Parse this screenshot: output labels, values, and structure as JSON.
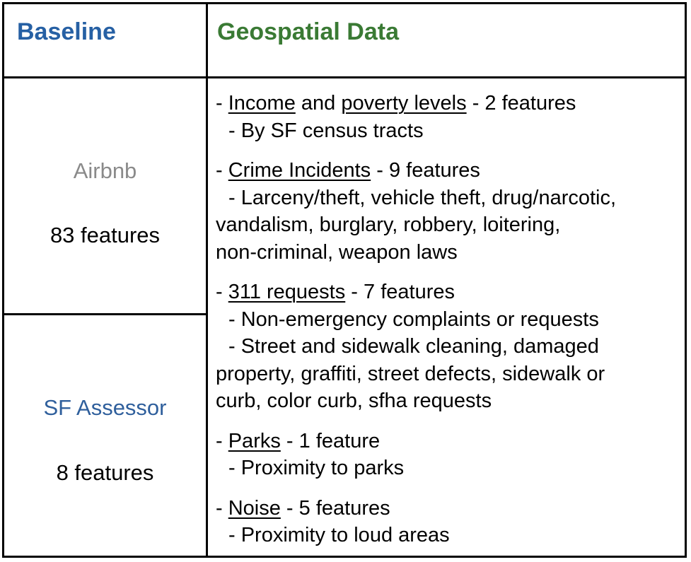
{
  "header": {
    "left": "Baseline",
    "right": "Geospatial Data"
  },
  "left_rows": [
    {
      "label": "Airbnb",
      "count": "83 features"
    },
    {
      "label": "SF Assessor",
      "count": "8 features"
    }
  ],
  "geospatial": {
    "income": {
      "dash": "- ",
      "term1": "Income",
      "and": " and ",
      "term2": "poverty levels",
      "count": " - 2 features",
      "sub1": "- By SF census tracts"
    },
    "crime": {
      "dash": "- ",
      "term": "Crime Incidents",
      "count": " - 9 features",
      "sub1": "- Larceny/theft, vehicle theft, drug/narcotic,",
      "cont1": "vandalism, burglary, robbery, loitering,",
      "cont2": "non-criminal, weapon laws"
    },
    "requests311": {
      "dash": "- ",
      "term": "311 requests",
      "count": " - 7 features",
      "sub1": "- Non-emergency complaints or requests",
      "sub2": "- Street and sidewalk cleaning, damaged",
      "cont1": "property, graffiti, street defects, sidewalk or",
      "cont2": "curb, color curb, sfha requests"
    },
    "parks": {
      "dash": "- ",
      "term": "Parks",
      "count": " - 1 feature",
      "sub1": "- Proximity to parks"
    },
    "noise": {
      "dash": "- ",
      "term": "Noise",
      "count": " - 5 features",
      "sub1": "- Proximity to loud areas"
    }
  },
  "colors": {
    "baseline_header": "#2660a4",
    "geospatial_header": "#3a7a34",
    "airbnb_label": "#8a8a8a",
    "sf_assessor_label": "#2f5f9c"
  }
}
